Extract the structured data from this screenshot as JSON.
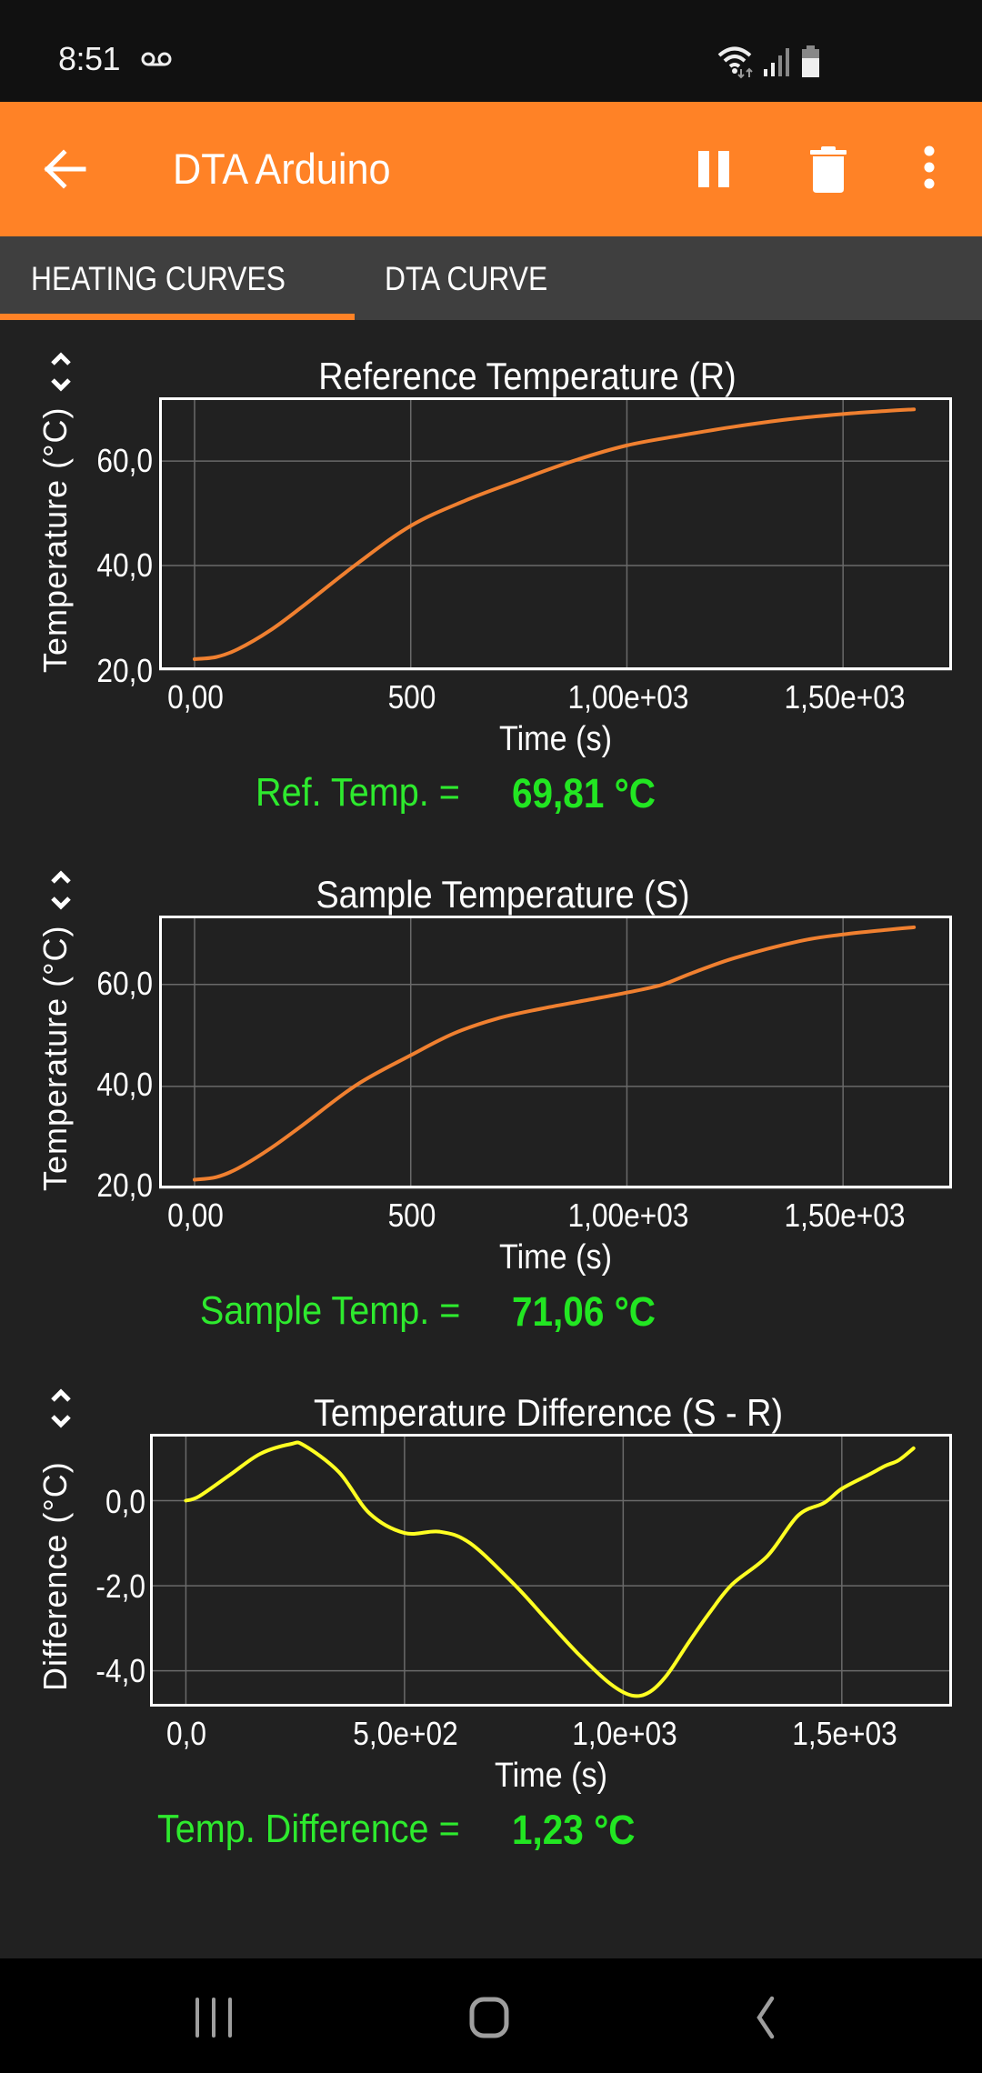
{
  "status_bar": {
    "time": "8:51",
    "icons": [
      "voicemail-icon",
      "wifi-icon",
      "signal-icon",
      "battery-icon"
    ]
  },
  "app_bar": {
    "title": "DTA Arduino",
    "background": "#FF8226",
    "actions": [
      "back-arrow-icon",
      "pause-icon",
      "trash-icon",
      "more-vert-icon"
    ]
  },
  "tabs": [
    {
      "label": "HEATING CURVES",
      "selected": true
    },
    {
      "label": "DTA CURVE",
      "selected": false
    }
  ],
  "charts": {
    "reference": {
      "title": "Reference Temperature (R)",
      "y_label": "Temperature (°C)",
      "x_label": "Time (s)",
      "y_ticks": [
        "60,0",
        "40,0",
        "20,0"
      ],
      "x_ticks": [
        "0,00",
        "500",
        "1,00e+03",
        "1,50e+03"
      ],
      "readout_label": "Ref. Temp. =",
      "readout_value": "69,81 °C"
    },
    "sample": {
      "title": "Sample Temperature (S)",
      "y_label": "Temperature (°C)",
      "x_label": "Time (s)",
      "y_ticks": [
        "60,0",
        "40,0",
        "20,0"
      ],
      "x_ticks": [
        "0,00",
        "500",
        "1,00e+03",
        "1,50e+03"
      ],
      "readout_label": "Sample Temp. =",
      "readout_value": "71,06 °C"
    },
    "difference": {
      "title": "Temperature Difference (S - R)",
      "y_label": "Difference (°C)",
      "x_label": "Time (s)",
      "y_ticks": [
        "0,0",
        "-2,0",
        "-4,0"
      ],
      "x_ticks": [
        "0,0",
        "5,0e+02",
        "1,0e+03",
        "1,5e+03"
      ],
      "readout_label": "Temp. Difference =",
      "readout_value": "1,23 °C"
    }
  },
  "chart_data": [
    {
      "type": "line",
      "title": "Reference Temperature (R)",
      "xlabel": "Time (s)",
      "ylabel": "Temperature (°C)",
      "xlim": [
        -82,
        1752
      ],
      "ylim": [
        20,
        72.2
      ],
      "xticks": [
        0,
        500,
        1000,
        1500
      ],
      "yticks": [
        20,
        40,
        60
      ],
      "grid": true,
      "color": "#F08030",
      "x": [
        0,
        50,
        100,
        175,
        250,
        375,
        500,
        625,
        750,
        875,
        1000,
        1125,
        1250,
        1375,
        1500,
        1600,
        1664
      ],
      "y": [
        22.1,
        22.5,
        24.0,
        27.6,
        32.2,
        40.3,
        47.6,
        52.4,
        56.3,
        60.0,
        63.0,
        64.9,
        66.6,
        68.0,
        69.0,
        69.6,
        69.9
      ]
    },
    {
      "type": "line",
      "title": "Sample Temperature (S)",
      "xlabel": "Time (s)",
      "ylabel": "Temperature (°C)",
      "xlim": [
        -82,
        1752
      ],
      "ylim": [
        20,
        73.5
      ],
      "xticks": [
        0,
        500,
        1000,
        1500
      ],
      "yticks": [
        20,
        40,
        60
      ],
      "grid": true,
      "color": "#F08030",
      "x": [
        0,
        50,
        100,
        175,
        250,
        375,
        500,
        600,
        700,
        800,
        900,
        1000,
        1080,
        1150,
        1250,
        1400,
        1500,
        1600,
        1664
      ],
      "y": [
        21.7,
        22.2,
        23.9,
        27.8,
        32.4,
        40.3,
        46.1,
        50.4,
        53.3,
        55.2,
        56.8,
        58.4,
        59.9,
        62.2,
        65.2,
        68.5,
        69.8,
        70.7,
        71.2
      ]
    },
    {
      "type": "line",
      "title": "Temperature Difference (S - R)",
      "xlabel": "Time (s)",
      "ylabel": "Difference (°C)",
      "xlim": [
        -82,
        1752
      ],
      "ylim": [
        -4.84,
        1.57
      ],
      "xticks": [
        0,
        500,
        1000,
        1500
      ],
      "yticks": [
        -4,
        -2,
        0
      ],
      "grid": true,
      "color": "#FFFF22",
      "x": [
        0,
        30,
        100,
        170,
        240,
        270,
        350,
        420,
        500,
        580,
        650,
        750,
        825,
        900,
        970,
        1020,
        1060,
        1100,
        1150,
        1200,
        1250,
        1330,
        1400,
        1460,
        1500,
        1560,
        1600,
        1630,
        1664
      ],
      "y": [
        0.0,
        0.1,
        0.6,
        1.1,
        1.33,
        1.3,
        0.67,
        -0.3,
        -0.76,
        -0.73,
        -1.0,
        -1.96,
        -2.8,
        -3.63,
        -4.3,
        -4.58,
        -4.5,
        -4.1,
        -3.33,
        -2.6,
        -1.96,
        -1.3,
        -0.35,
        -0.05,
        0.28,
        0.6,
        0.82,
        0.95,
        1.23
      ]
    }
  ],
  "nav_bar": {
    "buttons": [
      "recents-icon",
      "home-icon",
      "back-icon"
    ]
  }
}
